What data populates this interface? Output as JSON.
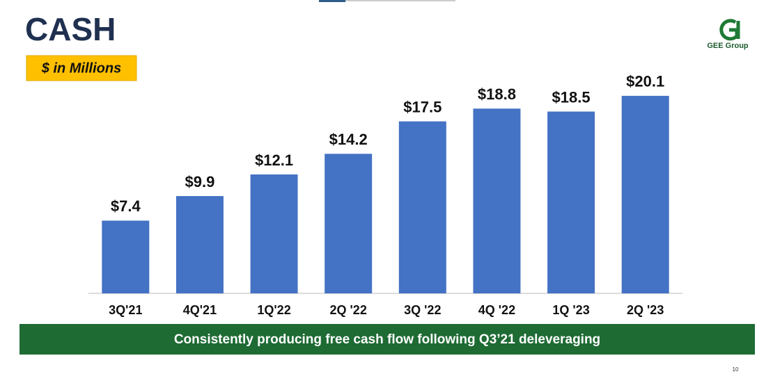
{
  "chart_data": {
    "type": "bar",
    "title": "CASH",
    "subtitle": "$ in Millions",
    "categories": [
      "3Q'21",
      "4Q'21",
      "1Q'22",
      "2Q '22",
      "3Q '22",
      "4Q '22",
      "1Q '23",
      "2Q '23"
    ],
    "values": [
      7.4,
      9.9,
      12.1,
      14.2,
      17.5,
      18.8,
      18.5,
      20.1
    ],
    "value_labels": [
      "$7.4",
      "$9.9",
      "$12.1",
      "$14.2",
      "$17.5",
      "$18.8",
      "$18.5",
      "$20.1"
    ],
    "color": "#4472c4",
    "ylim": [
      0,
      22
    ]
  },
  "banner": "Consistently producing free cash flow following Q3’21 deleveraging",
  "logo": "GEE Group",
  "page_number": "10"
}
